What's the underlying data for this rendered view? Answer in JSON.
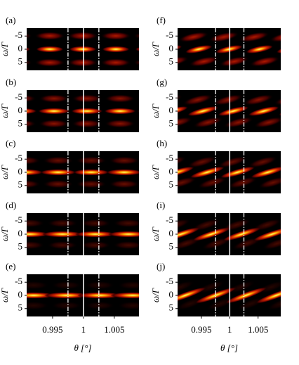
{
  "figure": {
    "panels": [
      {
        "label": "(a)"
      },
      {
        "label": "(b)"
      },
      {
        "label": "(c)"
      },
      {
        "label": "(d)"
      },
      {
        "label": "(e)"
      },
      {
        "label": "(f)"
      },
      {
        "label": "(g)"
      },
      {
        "label": "(h)"
      },
      {
        "label": "(i)"
      },
      {
        "label": "(j)"
      }
    ],
    "ylabel": "ω/Γ",
    "xlabel": "θ [°]",
    "ylim": [
      -8,
      8
    ],
    "yticks": [
      -5,
      0,
      5
    ],
    "xlim": [
      0.9908,
      1.009
    ],
    "xticks": [
      {
        "value": 0.995,
        "label": "0.995"
      },
      1,
      {
        "value": 1.005,
        "label": "1.005"
      }
    ],
    "solid_line": 1,
    "dashdot_lines": [
      0.9975,
      1.0025
    ]
  }
}
